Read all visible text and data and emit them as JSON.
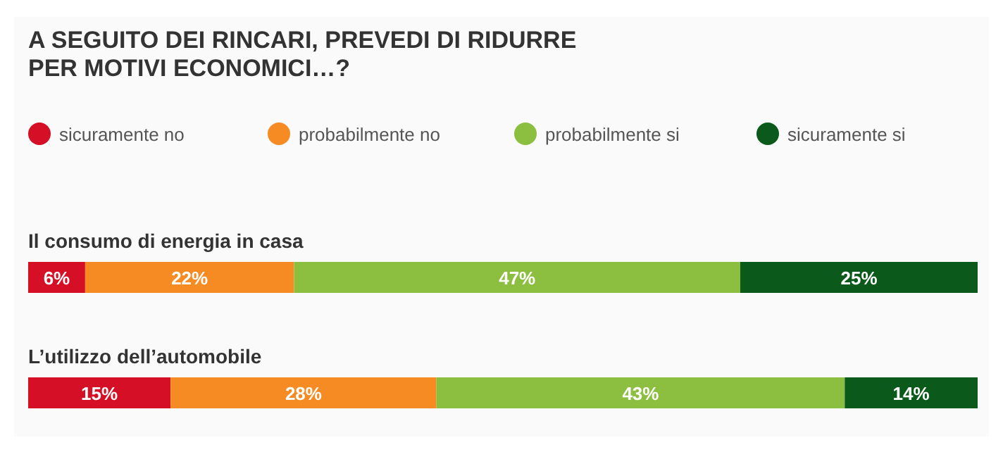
{
  "chart_data": {
    "type": "bar",
    "orientation": "horizontal",
    "stacked": true,
    "title": "A SEGUITO DEI RINCARI, PREVEDI DI RIDURRE\nPER MOTIVI ECONOMICI…?",
    "categories": [
      "Il consumo di energia in casa",
      "L’utilizzo dell’automobile"
    ],
    "series": [
      {
        "name": "sicuramente no",
        "color": "#d50f25",
        "values": [
          6,
          15
        ],
        "value_labels": [
          "6%",
          "15%"
        ]
      },
      {
        "name": "probabilmente no",
        "color": "#f68b23",
        "values": [
          22,
          28
        ],
        "value_labels": [
          "22%",
          "28%"
        ]
      },
      {
        "name": "probabilmente si",
        "color": "#8cbf3f",
        "values": [
          47,
          43
        ],
        "value_labels": [
          "47%",
          "43%"
        ]
      },
      {
        "name": "sicuramente si",
        "color": "#0b5a1c",
        "values": [
          25,
          14
        ],
        "value_labels": [
          "25%",
          "14%"
        ]
      }
    ],
    "legend": "top left"
  }
}
